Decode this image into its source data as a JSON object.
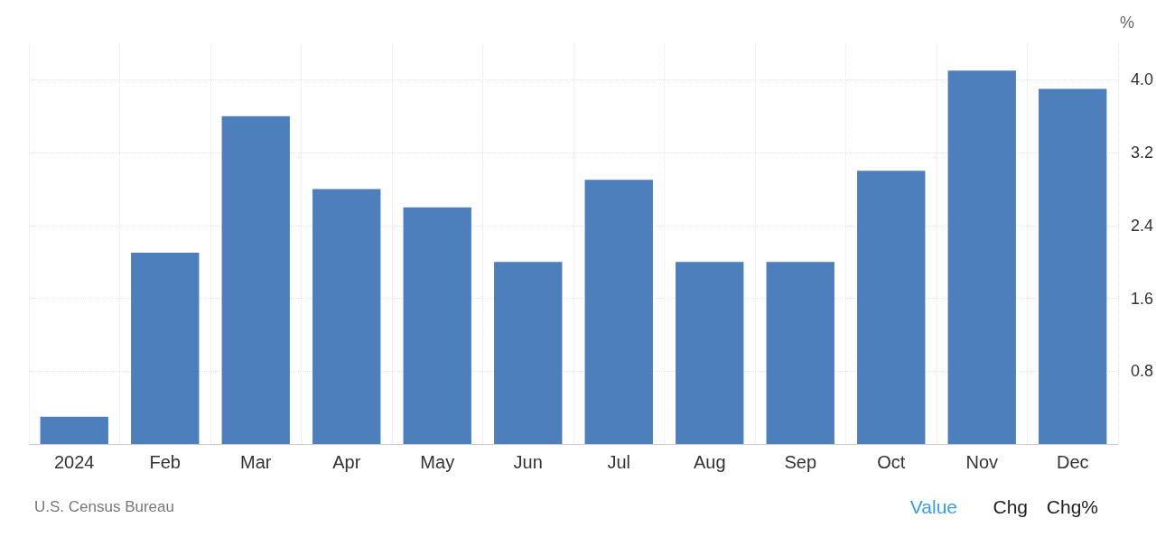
{
  "chart_data": {
    "type": "bar",
    "ylabel": "%",
    "categories": [
      "2024",
      "Feb",
      "Mar",
      "Apr",
      "May",
      "Jun",
      "Jul",
      "Aug",
      "Sep",
      "Oct",
      "Nov",
      "Dec"
    ],
    "values": [
      0.3,
      2.1,
      3.6,
      2.8,
      2.6,
      2.0,
      2.9,
      2.0,
      2.0,
      3.0,
      4.1,
      3.9
    ],
    "color": "#4e7fbd",
    "ylim": [
      0,
      4.4
    ],
    "yticks": [
      0.8,
      1.6,
      2.4,
      3.2,
      {
        "value": 4,
        "label": "4.0"
      }
    ],
    "grid": true,
    "annotations": [
      "U.S. Census Bureau",
      "Value",
      "Chg",
      "Chg%"
    ]
  }
}
